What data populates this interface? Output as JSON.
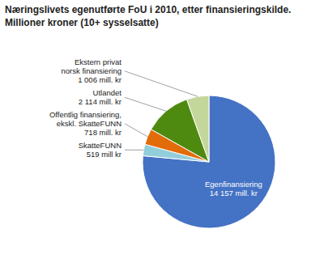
{
  "chart_data": {
    "type": "pie",
    "title": "Næringslivets egenutførte FoU i 2010, etter finansieringskilde.",
    "subtitle": "Millioner kroner  (10+ sysselsatte)",
    "categories": [
      "Egenfinansiering\n14 157 mill. kr",
      "SkatteFUNN\n519 mill kr",
      "Offentlig finansiering,\nekskl. SkatteFUNN\n718 mill. kr",
      "Utlandet\n2 114 mill. kr",
      "Ekstern privat\nnorsk finansiering\n1 006 mill. kr"
    ],
    "values": [
      14157,
      519,
      718,
      2114,
      1006
    ],
    "colors": [
      "#4472C4",
      "#92CDDC",
      "#E26B0A",
      "#4F8A10",
      "#C4D79B"
    ]
  }
}
